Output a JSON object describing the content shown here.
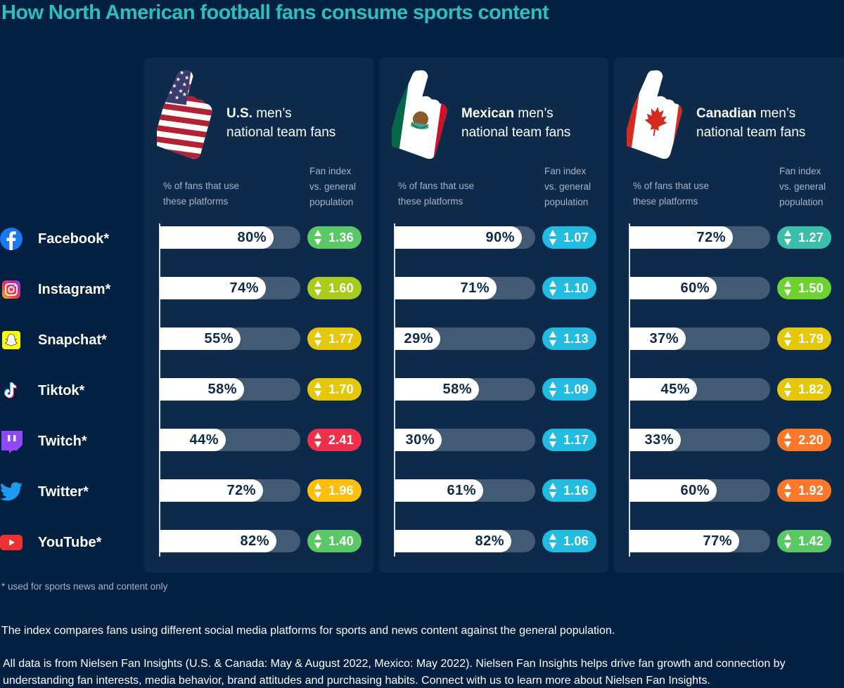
{
  "title": "How North American football fans consume sports content",
  "column_labels": {
    "pct_line1": "% of fans that use",
    "pct_line2": "these platforms",
    "idx_line1": "Fan index",
    "idx_line2": "vs. general",
    "idx_line3": "population"
  },
  "platforms": [
    {
      "name": "Facebook*",
      "icon": "facebook-icon"
    },
    {
      "name": "Instagram*",
      "icon": "instagram-icon"
    },
    {
      "name": "Snapchat*",
      "icon": "snapchat-icon"
    },
    {
      "name": "Tiktok*",
      "icon": "tiktok-icon"
    },
    {
      "name": "Twitch*",
      "icon": "twitch-icon"
    },
    {
      "name": "Twitter*",
      "icon": "twitter-icon"
    },
    {
      "name": "YouTube*",
      "icon": "youtube-icon"
    }
  ],
  "panels": [
    {
      "team_bold": "U.S.",
      "team_rest_1": " men’s",
      "team_line2": "national team fans",
      "flag": "us-flag-foam-finger-icon"
    },
    {
      "team_bold": "Mexican",
      "team_rest_1": " men’s",
      "team_line2": "national team fans",
      "flag": "mexico-flag-foam-finger-icon"
    },
    {
      "team_bold": "Canadian",
      "team_rest_1": " men’s",
      "team_line2": "national team fans",
      "flag": "canada-flag-foam-finger-icon"
    }
  ],
  "chart_data": {
    "type": "bar",
    "title": "How North American football fans consume sports content",
    "categories": [
      "Facebook*",
      "Instagram*",
      "Snapchat*",
      "Tiktok*",
      "Twitch*",
      "Twitter*",
      "YouTube*"
    ],
    "xlabel": "% of fans that use these platforms",
    "ylabel": "",
    "xlim": [
      0,
      100
    ],
    "series": [
      {
        "name": "U.S. men's national team fans",
        "values": [
          80,
          74,
          55,
          58,
          44,
          72,
          82
        ],
        "labels": [
          "80%",
          "74%",
          "55%",
          "58%",
          "44%",
          "72%",
          "82%"
        ],
        "fan_index": [
          "1.36",
          "1.60",
          "1.77",
          "1.70",
          "2.41",
          "1.96",
          "1.40"
        ],
        "fan_index_colors": [
          "#5ac864",
          "#a8cc1c",
          "#e6c80a",
          "#e6c80a",
          "#f0304a",
          "#ffbe0a",
          "#5ac864"
        ]
      },
      {
        "name": "Mexican men's national team fans",
        "values": [
          90,
          71,
          29,
          58,
          30,
          61,
          82
        ],
        "labels": [
          "90%",
          "71%",
          "29%",
          "58%",
          "30%",
          "61%",
          "82%"
        ],
        "fan_index": [
          "1.07",
          "1.10",
          "1.13",
          "1.09",
          "1.17",
          "1.16",
          "1.06"
        ],
        "fan_index_colors": [
          "#23bce0",
          "#23bce0",
          "#23bce0",
          "#23bce0",
          "#23bce0",
          "#23bce0",
          "#23bce0"
        ]
      },
      {
        "name": "Canadian men's national team fans",
        "values": [
          72,
          60,
          37,
          45,
          33,
          60,
          77
        ],
        "labels": [
          "72%",
          "60%",
          "37%",
          "45%",
          "33%",
          "60%",
          "77%"
        ],
        "fan_index": [
          "1.27",
          "1.50",
          "1.79",
          "1.82",
          "2.20",
          "1.92",
          "1.42"
        ],
        "fan_index_colors": [
          "#3cbfa8",
          "#6ed232",
          "#e6c80a",
          "#e6c80a",
          "#fa7828",
          "#fa7828",
          "#5ac864"
        ]
      }
    ],
    "secondary_metric": "Fan index vs. general population",
    "grid": false,
    "legend": "none"
  },
  "footnote": "* used for sports news and content only",
  "note_index": "The index compares fans using different social media platforms for sports and news content against the general population.",
  "note_source": "All data is from Nielsen Fan Insights (U.S. & Canada: May & August 2022, Mexico: May 2022). Nielsen Fan Insights helps drive fan growth and connection by understanding fan interests, media behavior, brand attitudes and purchasing habits. Connect with us to learn more about Nielsen Fan Insights."
}
